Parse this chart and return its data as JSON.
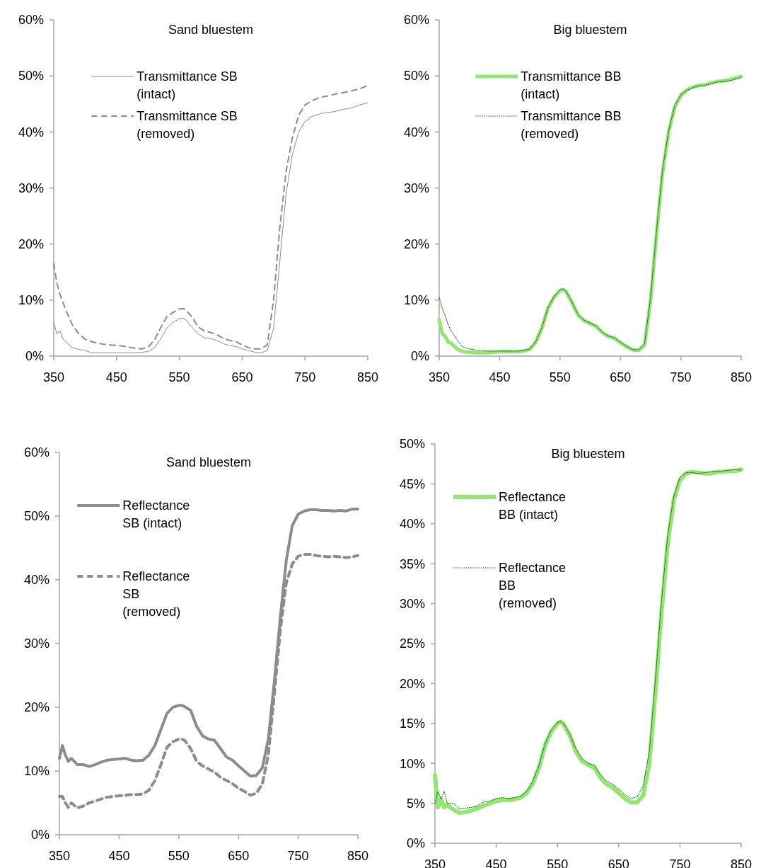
{
  "chart_data": [
    {
      "type": "line",
      "title": "Sand bluestem",
      "legend": "top",
      "grid": false,
      "x": [
        350,
        355,
        360,
        365,
        370,
        380,
        390,
        400,
        410,
        420,
        430,
        440,
        450,
        460,
        470,
        480,
        490,
        500,
        510,
        520,
        530,
        540,
        550,
        555,
        560,
        570,
        580,
        590,
        600,
        610,
        620,
        630,
        640,
        650,
        660,
        670,
        680,
        690,
        700,
        710,
        720,
        730,
        740,
        750,
        760,
        770,
        780,
        790,
        800,
        810,
        820,
        830,
        840,
        850
      ],
      "xlim": [
        350,
        850
      ],
      "xticks": [
        350,
        450,
        550,
        650,
        750,
        850
      ],
      "ylim": [
        0,
        60
      ],
      "yticks": [
        {
          "value": 0,
          "label": "0%"
        },
        {
          "value": 10,
          "label": "10%"
        },
        {
          "value": 20,
          "label": "20%"
        },
        {
          "value": 30,
          "label": "30%"
        },
        {
          "value": 40,
          "label": "40%"
        },
        {
          "value": 50,
          "label": "50%"
        },
        {
          "value": 60,
          "label": "60%"
        }
      ],
      "series": [
        {
          "name": "Transmittance SB (intact)",
          "color": "#8c8c8c",
          "line_style": "solid",
          "values": [
            6,
            4,
            4.5,
            3,
            2.5,
            1.5,
            1.2,
            1,
            0.6,
            0.6,
            0.6,
            0.6,
            0.6,
            0.6,
            0.6,
            0.6,
            0.7,
            0.8,
            1.5,
            3,
            5,
            6,
            6.7,
            6.8,
            6.5,
            5.2,
            4,
            3.3,
            3.1,
            2.8,
            2.2,
            1.9,
            1.7,
            1.3,
            1,
            0.7,
            0.6,
            1,
            5,
            17,
            29,
            36,
            40,
            41.8,
            42.7,
            43.1,
            43.4,
            43.5,
            43.7,
            44,
            44.2,
            44.5,
            44.9,
            45.2
          ]
        },
        {
          "name": "Transmittance SB (removed)",
          "color": "#8c8c8c",
          "line_style": "dashed",
          "values": [
            16.5,
            13,
            11,
            9.5,
            8,
            5.5,
            4,
            3,
            2.6,
            2.3,
            2.1,
            2,
            1.9,
            1.8,
            1.6,
            1.4,
            1.3,
            1.6,
            2.8,
            5,
            7,
            7.8,
            8.4,
            8.5,
            8.3,
            7,
            5.2,
            4.5,
            4.2,
            3.8,
            3.2,
            2.8,
            2.6,
            2,
            1.5,
            1.3,
            1.3,
            2,
            10,
            23,
            33,
            39,
            43,
            44.8,
            45.5,
            46,
            46.3,
            46.5,
            46.8,
            47,
            47.2,
            47.5,
            47.8,
            48.3
          ]
        }
      ]
    },
    {
      "type": "line",
      "title": "Big bluestem",
      "legend": "top",
      "grid": false,
      "x": [
        350,
        355,
        360,
        365,
        370,
        380,
        390,
        400,
        410,
        420,
        430,
        440,
        450,
        460,
        470,
        480,
        490,
        500,
        510,
        520,
        530,
        540,
        550,
        555,
        560,
        570,
        580,
        590,
        600,
        610,
        620,
        630,
        640,
        650,
        660,
        670,
        680,
        690,
        700,
        710,
        720,
        730,
        740,
        750,
        760,
        770,
        780,
        790,
        800,
        810,
        820,
        830,
        840,
        850
      ],
      "xlim": [
        350,
        850
      ],
      "xticks": [
        350,
        450,
        550,
        650,
        750,
        850
      ],
      "ylim": [
        0,
        60
      ],
      "yticks": [
        {
          "value": 0,
          "label": "0%"
        },
        {
          "value": 10,
          "label": "10%"
        },
        {
          "value": 20,
          "label": "20%"
        },
        {
          "value": 30,
          "label": "30%"
        },
        {
          "value": 40,
          "label": "40%"
        },
        {
          "value": 50,
          "label": "50%"
        },
        {
          "value": 60,
          "label": "60%"
        }
      ],
      "series": [
        {
          "name": "Transmittance BB (intact)",
          "color": "#90e86f",
          "line_style": "solid",
          "values": [
            6.5,
            4,
            3.5,
            2.5,
            2.3,
            1.2,
            0.8,
            0.7,
            0.6,
            0.6,
            0.6,
            0.7,
            0.8,
            0.8,
            0.8,
            0.8,
            0.9,
            1.2,
            2.5,
            5,
            8.5,
            10.5,
            11.7,
            11.9,
            11.5,
            9.5,
            7.3,
            6.3,
            5.8,
            5.3,
            4.2,
            3.5,
            3.2,
            2.4,
            1.7,
            1.1,
            1,
            2,
            10,
            22,
            33,
            40,
            44.5,
            46.5,
            47.5,
            48,
            48.3,
            48.4,
            48.7,
            49,
            49.1,
            49.3,
            49.6,
            49.9
          ]
        },
        {
          "name": "Transmittance BB (removed)",
          "color": "#1f5a2e",
          "line_style": "dotted",
          "values": [
            10.5,
            8.5,
            7.2,
            5.5,
            4.5,
            2.8,
            1.6,
            1.3,
            1.1,
            1,
            0.9,
            0.9,
            0.9,
            0.9,
            0.9,
            0.9,
            1,
            1.3,
            2.6,
            5.1,
            8.6,
            10.6,
            11.8,
            12,
            11.6,
            9.6,
            7.4,
            6.4,
            5.9,
            5.4,
            4.3,
            3.6,
            3.3,
            2.5,
            1.8,
            1.2,
            1.1,
            2.2,
            10.5,
            22.5,
            33.5,
            40.3,
            44.7,
            46.6,
            47.4,
            47.9,
            48.2,
            48.3,
            48.6,
            48.9,
            49,
            49.1,
            49.4,
            49.7
          ]
        }
      ]
    },
    {
      "type": "line",
      "title": "Sand bluestem",
      "legend": "top left",
      "grid": false,
      "x": [
        350,
        355,
        360,
        365,
        370,
        380,
        390,
        400,
        410,
        420,
        430,
        440,
        450,
        460,
        470,
        480,
        490,
        500,
        510,
        520,
        530,
        540,
        550,
        555,
        560,
        570,
        580,
        590,
        600,
        610,
        620,
        630,
        640,
        650,
        660,
        670,
        680,
        690,
        700,
        710,
        720,
        730,
        740,
        750,
        760,
        770,
        780,
        790,
        800,
        810,
        820,
        830,
        840,
        850
      ],
      "xlim": [
        350,
        850
      ],
      "xticks": [
        350,
        450,
        550,
        650,
        750,
        850
      ],
      "ylim": [
        0,
        60
      ],
      "yticks": [
        {
          "value": 0,
          "label": "0%"
        },
        {
          "value": 10,
          "label": "10%"
        },
        {
          "value": 20,
          "label": "20%"
        },
        {
          "value": 30,
          "label": "30%"
        },
        {
          "value": 40,
          "label": "40%"
        },
        {
          "value": 50,
          "label": "50%"
        },
        {
          "value": 60,
          "label": "60%"
        }
      ],
      "series": [
        {
          "name": "Reflectance SB (intact)",
          "color": "#8c8c8c",
          "line_style": "solid",
          "values": [
            12,
            14,
            12.5,
            11.5,
            12,
            11,
            11,
            10.7,
            11,
            11.4,
            11.7,
            11.8,
            11.9,
            12,
            11.7,
            11.6,
            11.7,
            12.5,
            14,
            16.5,
            19,
            20,
            20.3,
            20.3,
            20.1,
            19.5,
            17,
            15.5,
            15,
            14.8,
            13.5,
            12.2,
            11.7,
            10.8,
            10,
            9.2,
            9.3,
            10.5,
            15,
            24,
            34,
            43,
            48.5,
            50.3,
            50.8,
            51,
            51,
            50.9,
            50.9,
            50.8,
            50.9,
            50.8,
            51.1,
            51.1
          ]
        },
        {
          "name": "Reflectance SB (removed)",
          "color": "#8c8c8c",
          "line_style": "dashed",
          "values": [
            6,
            6,
            5,
            4.3,
            5,
            4.2,
            4.5,
            5,
            5.3,
            5.6,
            5.9,
            6,
            6.1,
            6.2,
            6.3,
            6.3,
            6.4,
            7,
            8.5,
            11,
            13.7,
            14.6,
            15,
            15,
            14.8,
            13.5,
            11.5,
            10.8,
            10.3,
            9.8,
            9,
            8.5,
            8,
            7.3,
            6.8,
            6.2,
            6.5,
            8,
            12.5,
            22,
            32,
            39.5,
            42.5,
            43.7,
            44,
            44,
            43.8,
            43.7,
            43.6,
            43.7,
            43.6,
            43.5,
            43.6,
            43.8
          ]
        }
      ]
    },
    {
      "type": "line",
      "title": "Big bluestem",
      "legend": "top left",
      "grid": false,
      "x": [
        350,
        355,
        360,
        365,
        370,
        380,
        390,
        400,
        410,
        420,
        430,
        440,
        450,
        460,
        470,
        480,
        490,
        500,
        510,
        520,
        530,
        540,
        550,
        555,
        560,
        570,
        580,
        590,
        600,
        610,
        620,
        630,
        640,
        650,
        660,
        670,
        680,
        690,
        700,
        710,
        720,
        730,
        740,
        750,
        760,
        770,
        780,
        790,
        800,
        810,
        820,
        830,
        840,
        850
      ],
      "xlim": [
        350,
        850
      ],
      "xticks": [
        350,
        450,
        550,
        650,
        750,
        850
      ],
      "ylim": [
        0,
        50
      ],
      "yticks": [
        {
          "value": 0,
          "label": "0%"
        },
        {
          "value": 5,
          "label": "5%"
        },
        {
          "value": 10,
          "label": "10%"
        },
        {
          "value": 15,
          "label": "15%"
        },
        {
          "value": 20,
          "label": "20%"
        },
        {
          "value": 25,
          "label": "25%"
        },
        {
          "value": 30,
          "label": "30%"
        },
        {
          "value": 35,
          "label": "35%"
        },
        {
          "value": 40,
          "label": "40%"
        },
        {
          "value": 45,
          "label": "45%"
        },
        {
          "value": 50,
          "label": "50%"
        }
      ],
      "series": [
        {
          "name": "Reflectance BB (intact)",
          "color": "#90e86f",
          "line_style": "solid",
          "values": [
            8.5,
            4.5,
            5.5,
            4.5,
            4.8,
            4.2,
            3.8,
            3.9,
            4.1,
            4.4,
            4.7,
            5,
            5.3,
            5.4,
            5.4,
            5.5,
            5.7,
            6.3,
            7.5,
            9.5,
            12.3,
            14,
            15,
            15.2,
            14.9,
            13.5,
            11.5,
            10.3,
            9.8,
            9.5,
            8.2,
            7.4,
            7,
            6.3,
            5.6,
            5.1,
            5.1,
            6,
            10,
            19,
            29,
            37.5,
            43,
            45.5,
            46.3,
            46.5,
            46.4,
            46.3,
            46.3,
            46.5,
            46.5,
            46.6,
            46.6,
            46.8
          ]
        },
        {
          "name": "Reflectance BB (removed)",
          "color": "#1f5a2e",
          "line_style": "dotted",
          "values": [
            5,
            6.5,
            5.5,
            6.5,
            5,
            5,
            4.3,
            4.4,
            4.5,
            4.7,
            5.2,
            5.3,
            5.6,
            5.7,
            5.6,
            5.7,
            5.9,
            6.5,
            7.8,
            9.8,
            12.5,
            14.2,
            15.1,
            15.3,
            15,
            13.7,
            11.8,
            10.6,
            10,
            9.8,
            8.6,
            7.8,
            7.4,
            6.8,
            6.1,
            5.6,
            5.8,
            7.2,
            11.5,
            20.5,
            30.5,
            38.5,
            43.5,
            45.8,
            46.4,
            46.4,
            46.3,
            46.4,
            46.5,
            46.5,
            46.6,
            46.7,
            46.8,
            46.7
          ]
        }
      ]
    }
  ]
}
